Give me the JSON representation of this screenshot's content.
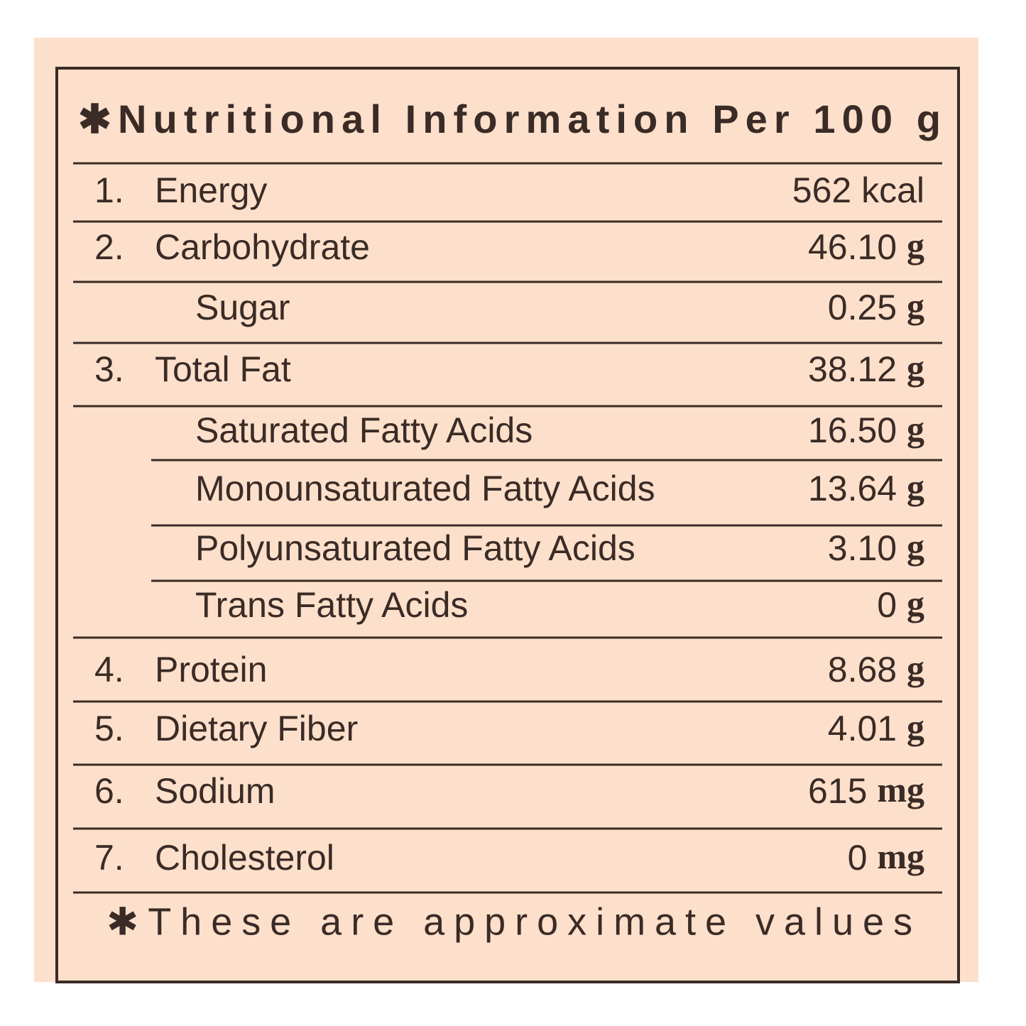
{
  "header": {
    "title": "✱Nutritional Information Per 100 g"
  },
  "table": {
    "rows": [
      {
        "number": "1.",
        "name": "Energy",
        "value": "562 kcal"
      },
      {
        "number": "2.",
        "name": "Carbohydrate",
        "value": "46.10",
        "unit": "g",
        "subitems": [
          {
            "name": "Sugar",
            "value": "0.25",
            "unit": "g"
          }
        ]
      },
      {
        "number": "3.",
        "name": "Total Fat",
        "value": "38.12",
        "unit": "g",
        "subitems": [
          {
            "name": "Saturated Fatty Acids",
            "value": "16.50",
            "unit": "g"
          },
          {
            "name": "Monounsaturated Fatty Acids",
            "value": "13.64",
            "unit": "g"
          },
          {
            "name": "Polyunsaturated Fatty Acids",
            "value": "3.10",
            "unit": "g"
          },
          {
            "name": "Trans Fatty Acids",
            "value": "0",
            "unit": "g"
          }
        ]
      },
      {
        "number": "4.",
        "name": "Protein",
        "value": "8.68",
        "unit": "g"
      },
      {
        "number": "5.",
        "name": "Dietary Fiber",
        "value": "4.01",
        "unit": "g"
      },
      {
        "number": "6.",
        "name": "Sodium",
        "value": "615",
        "unit": "mg"
      },
      {
        "number": "7.",
        "name": "Cholesterol",
        "value": "0",
        "unit": "mg"
      }
    ]
  },
  "footer": {
    "note": "✱These are approximate values"
  }
}
